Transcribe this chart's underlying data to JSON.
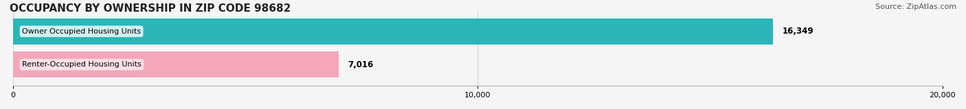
{
  "title": "OCCUPANCY BY OWNERSHIP IN ZIP CODE 98682",
  "source": "Source: ZipAtlas.com",
  "categories": [
    "Owner Occupied Housing Units",
    "Renter-Occupied Housing Units"
  ],
  "values": [
    16349,
    7016
  ],
  "bar_colors": [
    "#2bb5b8",
    "#f4a7b9"
  ],
  "label_bg_colors": [
    "#e0f7f7",
    "#fce4ec"
  ],
  "xlim": [
    0,
    20000
  ],
  "xticks": [
    0,
    10000,
    20000
  ],
  "xtick_labels": [
    "0",
    "10,000",
    "20,000"
  ],
  "title_fontsize": 11,
  "source_fontsize": 8,
  "bar_label_fontsize": 8.5,
  "category_fontsize": 8,
  "background_color": "#f5f5f5"
}
